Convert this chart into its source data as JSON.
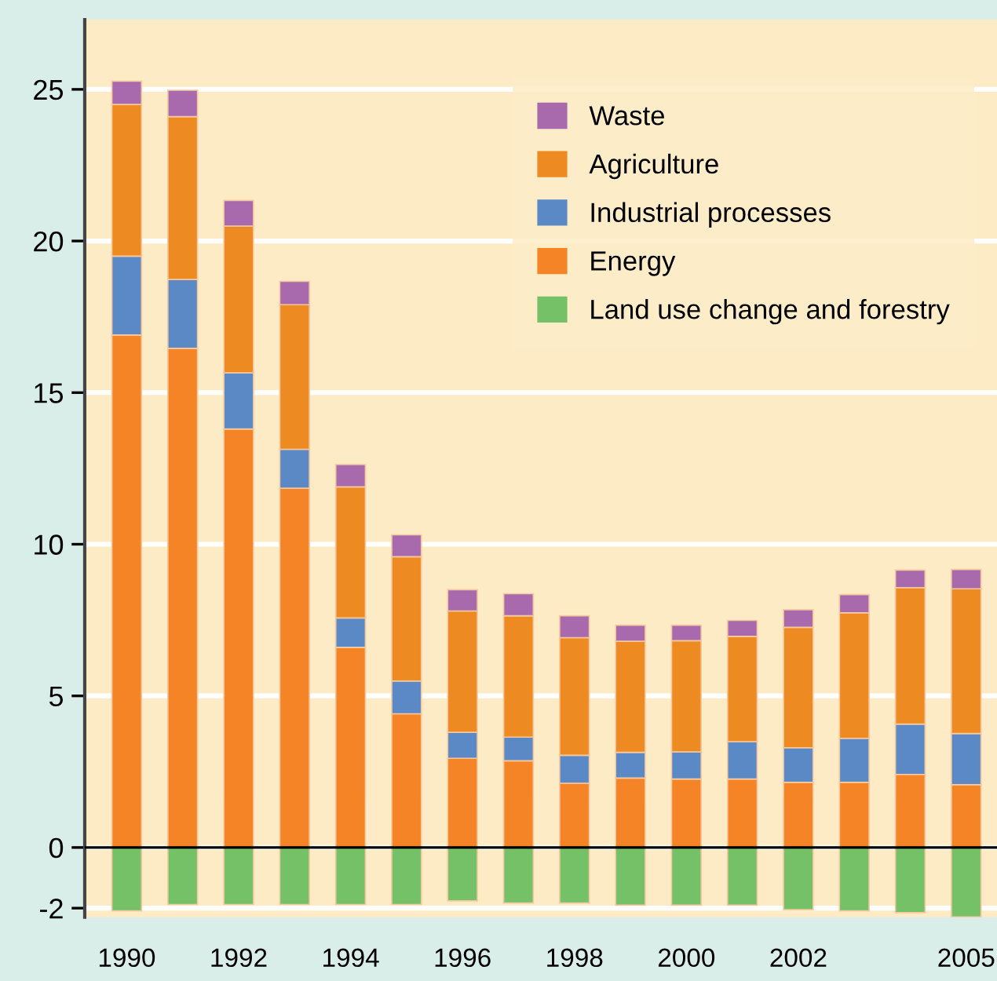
{
  "chart_data": {
    "type": "bar",
    "stacked": true,
    "categories": [
      "1990",
      null,
      "1992",
      null,
      "1994",
      null,
      "1996",
      null,
      "1998",
      null,
      "2000",
      null,
      "2002",
      null,
      null,
      "2005"
    ],
    "series": [
      {
        "name": "Land use change and forestry",
        "color": "#74c167",
        "values": [
          -2.09,
          -1.88,
          -1.88,
          -1.88,
          -1.88,
          -1.88,
          -1.76,
          -1.83,
          -1.83,
          -1.9,
          -1.9,
          -1.9,
          -2.05,
          -2.09,
          -2.15,
          -2.29
        ]
      },
      {
        "name": "Energy",
        "color": "#f58426",
        "values": [
          16.9,
          16.46,
          13.8,
          11.85,
          6.6,
          4.41,
          2.94,
          2.86,
          2.12,
          2.29,
          2.26,
          2.26,
          2.15,
          2.15,
          2.41,
          2.07
        ]
      },
      {
        "name": "Industrial processes",
        "color": "#5b89c6",
        "values": [
          2.6,
          2.27,
          1.85,
          1.28,
          0.97,
          1.08,
          0.86,
          0.78,
          0.92,
          0.85,
          0.89,
          1.23,
          1.14,
          1.45,
          1.66,
          1.69
        ]
      },
      {
        "name": "Agriculture",
        "color": "#ee8a22",
        "values": [
          5.0,
          5.37,
          4.84,
          4.77,
          4.32,
          4.1,
          4.0,
          4.0,
          3.88,
          3.66,
          3.67,
          3.47,
          3.97,
          4.14,
          4.5,
          4.77
        ]
      },
      {
        "name": "Waste",
        "color": "#a86aad",
        "values": [
          0.77,
          0.87,
          0.85,
          0.77,
          0.74,
          0.72,
          0.7,
          0.73,
          0.72,
          0.53,
          0.51,
          0.53,
          0.58,
          0.6,
          0.58,
          0.64
        ]
      }
    ],
    "ylim": [
      -2.3,
      27.3
    ],
    "yticks": [
      -2,
      0,
      5,
      10,
      15,
      20,
      25
    ],
    "grid": "y",
    "legend": "top right",
    "ref_lines": [
      {
        "axis": "y",
        "value": 0,
        "color": "#000000"
      }
    ]
  }
}
